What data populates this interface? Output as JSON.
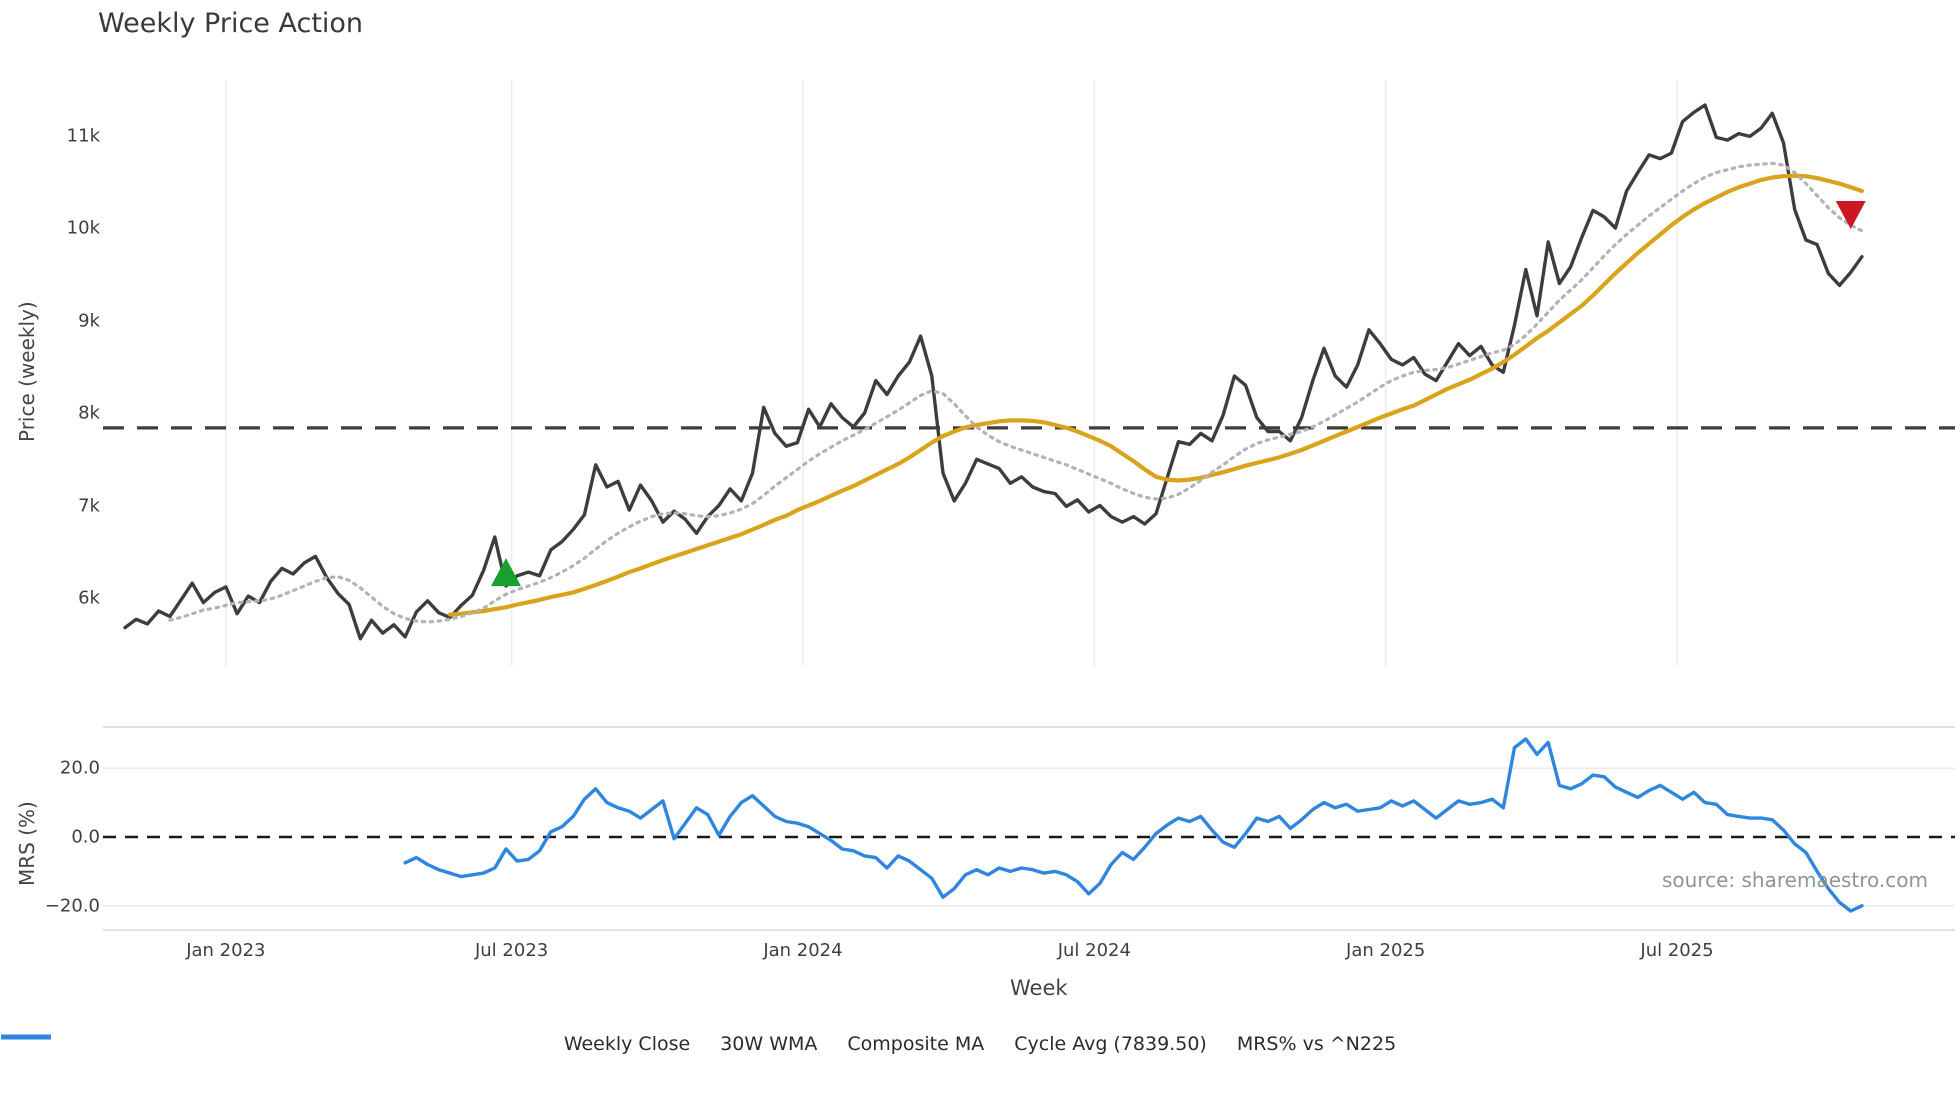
{
  "title": "Weekly Price Action",
  "source_note": "source: sharemaestro.com",
  "colors": {
    "close": "#3d3d3d",
    "wma": "#d9a41b",
    "composite": "#b3b3b3",
    "cycle_avg": "#3d3d3d",
    "mrs": "#2e86de",
    "buy_marker": "#17a02b",
    "sell_marker": "#cf1722",
    "gridline": "#ececf2",
    "panel_border": "#d9d9de",
    "panel_gridline": "#ebebef",
    "zero_line": "#1a1a1a"
  },
  "legend": [
    {
      "label": "Weekly Close",
      "swatch": "solid",
      "color": "#3d3d3d"
    },
    {
      "label": "30W WMA",
      "swatch": "solid",
      "color": "#d9a41b"
    },
    {
      "label": "Composite MA",
      "swatch": "dotted",
      "color": "#b3b3b3"
    },
    {
      "label": "Cycle Avg (7839.50)",
      "swatch": "dashed",
      "color": "#3d3d3d"
    },
    {
      "label": "MRS% vs ^N225",
      "swatch": "solid",
      "color": "#2e86de"
    }
  ],
  "chart_data": [
    {
      "type": "line",
      "title": "Weekly Price Action",
      "xlabel": "Week",
      "ylabel": "Price (weekly)",
      "ylim": [
        5400,
        11600
      ],
      "yticks": [
        {
          "v": 6000,
          "label": "6k"
        },
        {
          "v": 7000,
          "label": "7k"
        },
        {
          "v": 8000,
          "label": "8k"
        },
        {
          "v": 9000,
          "label": "9k"
        },
        {
          "v": 10000,
          "label": "10k"
        },
        {
          "v": 11000,
          "label": "11k"
        }
      ],
      "xticks": [
        {
          "week": 9,
          "label": "Jan 2023"
        },
        {
          "week": 34.5,
          "label": "Jul 2023"
        },
        {
          "week": 60.5,
          "label": "Jan 2024"
        },
        {
          "week": 86.5,
          "label": "Jul 2024"
        },
        {
          "week": 112.5,
          "label": "Jan 2025"
        },
        {
          "week": 138.5,
          "label": "Jul 2025"
        }
      ],
      "grid": "vertical",
      "cycle_avg": 7839.5,
      "series": [
        {
          "name": "Weekly Close",
          "style": "solid",
          "color": "#3d3d3d",
          "width": 3.4,
          "start_week": 0,
          "values": [
            5680,
            5770,
            5720,
            5860,
            5800,
            5980,
            6160,
            5950,
            6060,
            6120,
            5830,
            6020,
            5950,
            6180,
            6320,
            6260,
            6380,
            6450,
            6220,
            6050,
            5930,
            5560,
            5760,
            5620,
            5710,
            5580,
            5850,
            5970,
            5840,
            5790,
            5920,
            6030,
            6300,
            6660,
            6130,
            6240,
            6280,
            6240,
            6520,
            6610,
            6740,
            6900,
            7440,
            7200,
            7260,
            6950,
            7220,
            7050,
            6820,
            6940,
            6850,
            6700,
            6880,
            7000,
            7180,
            7050,
            7350,
            8060,
            7780,
            7640,
            7680,
            8040,
            7850,
            8100,
            7950,
            7850,
            8000,
            8350,
            8200,
            8400,
            8550,
            8830,
            8400,
            7350,
            7050,
            7240,
            7500,
            7450,
            7400,
            7240,
            7310,
            7200,
            7150,
            7130,
            6990,
            7060,
            6930,
            7000,
            6880,
            6820,
            6880,
            6800,
            6910,
            7300,
            7690,
            7660,
            7780,
            7700,
            7980,
            8400,
            8300,
            7950,
            7800,
            7800,
            7700,
            7950,
            8350,
            8700,
            8400,
            8280,
            8520,
            8900,
            8750,
            8580,
            8520,
            8600,
            8420,
            8350,
            8550,
            8750,
            8620,
            8720,
            8520,
            8440,
            8950,
            9550,
            9050,
            9850,
            9400,
            9580,
            9900,
            10190,
            10120,
            10000,
            10400,
            10600,
            10790,
            10750,
            10810,
            11150,
            11250,
            11330,
            10980,
            10950,
            11020,
            10990,
            11080,
            11240,
            10920,
            10200,
            9870,
            9820,
            9510,
            9380,
            9520,
            9690
          ]
        },
        {
          "name": "30W WMA",
          "style": "solid",
          "color": "#d9a41b",
          "width": 4.2,
          "start_week": 29,
          "values": [
            5820,
            5830,
            5845,
            5860,
            5880,
            5900,
            5930,
            5955,
            5980,
            6010,
            6035,
            6060,
            6100,
            6140,
            6185,
            6230,
            6280,
            6320,
            6365,
            6410,
            6450,
            6490,
            6530,
            6570,
            6610,
            6650,
            6690,
            6740,
            6790,
            6845,
            6890,
            6950,
            7000,
            7050,
            7105,
            7160,
            7210,
            7270,
            7330,
            7390,
            7450,
            7520,
            7600,
            7680,
            7750,
            7800,
            7845,
            7870,
            7890,
            7910,
            7920,
            7920,
            7915,
            7900,
            7870,
            7840,
            7800,
            7750,
            7700,
            7640,
            7560,
            7480,
            7390,
            7310,
            7280,
            7270,
            7280,
            7300,
            7330,
            7360,
            7395,
            7430,
            7460,
            7490,
            7520,
            7560,
            7600,
            7650,
            7700,
            7750,
            7800,
            7850,
            7900,
            7950,
            7995,
            8040,
            8080,
            8140,
            8200,
            8260,
            8310,
            8360,
            8420,
            8480,
            8550,
            8630,
            8720,
            8810,
            8890,
            8980,
            9070,
            9160,
            9270,
            9390,
            9510,
            9620,
            9730,
            9830,
            9930,
            10030,
            10120,
            10200,
            10270,
            10330,
            10390,
            10440,
            10480,
            10520,
            10545,
            10560,
            10565,
            10560,
            10540,
            10510,
            10480,
            10440,
            10400
          ]
        },
        {
          "name": "Composite MA",
          "style": "dotted",
          "color": "#b3b3b3",
          "width": 3.2,
          "start_week": 4,
          "values": [
            5760,
            5790,
            5830,
            5870,
            5890,
            5920,
            5950,
            5960,
            5970,
            5990,
            6030,
            6080,
            6130,
            6180,
            6220,
            6230,
            6190,
            6110,
            6010,
            5910,
            5830,
            5780,
            5750,
            5740,
            5750,
            5770,
            5800,
            5840,
            5890,
            5970,
            6040,
            6090,
            6130,
            6170,
            6220,
            6280,
            6350,
            6430,
            6530,
            6620,
            6700,
            6770,
            6830,
            6880,
            6910,
            6920,
            6910,
            6890,
            6880,
            6890,
            6920,
            6960,
            7020,
            7110,
            7210,
            7300,
            7390,
            7480,
            7560,
            7630,
            7700,
            7760,
            7820,
            7890,
            7960,
            8030,
            8110,
            8190,
            8240,
            8210,
            8100,
            7970,
            7850,
            7760,
            7690,
            7640,
            7600,
            7560,
            7520,
            7480,
            7440,
            7390,
            7340,
            7290,
            7240,
            7180,
            7130,
            7090,
            7070,
            7080,
            7120,
            7190,
            7270,
            7360,
            7440,
            7530,
            7610,
            7670,
            7710,
            7740,
            7770,
            7800,
            7850,
            7910,
            7980,
            8050,
            8120,
            8200,
            8280,
            8350,
            8400,
            8440,
            8460,
            8470,
            8490,
            8530,
            8570,
            8610,
            8650,
            8680,
            8740,
            8840,
            8960,
            9090,
            9220,
            9330,
            9440,
            9570,
            9700,
            9820,
            9930,
            10030,
            10130,
            10220,
            10310,
            10400,
            10480,
            10550,
            10600,
            10630,
            10660,
            10680,
            10690,
            10700,
            10680,
            10600,
            10480,
            10350,
            10220,
            10110,
            10030,
            9970
          ]
        },
        {
          "name": "Cycle Avg (7839.50)",
          "style": "dashed",
          "color": "#3d3d3d",
          "width": 3.2,
          "constant": 7839.5
        }
      ],
      "markers": [
        {
          "shape": "triangle-up",
          "week": 34,
          "value": 6280,
          "color": "#17a02b",
          "meaning": "buy-signal"
        },
        {
          "shape": "triangle-down",
          "week": 154,
          "value": 10140,
          "color": "#cf1722",
          "meaning": "sell-signal"
        }
      ]
    },
    {
      "type": "line",
      "ylabel": "MRS (%)",
      "ylim": [
        -26.5,
        32
      ],
      "yticks": [
        {
          "v": 20,
          "label": "20.0"
        },
        {
          "v": 0,
          "label": "0.0"
        },
        {
          "v": -20,
          "label": "−20.0"
        }
      ],
      "zero_line": true,
      "series": [
        {
          "name": "MRS% vs ^N225",
          "style": "solid",
          "color": "#2e86de",
          "width": 3.4,
          "start_week": 25,
          "values": [
            -7.5,
            -6,
            -8,
            -9.5,
            -10.5,
            -11.5,
            -11,
            -10.5,
            -9,
            -3.5,
            -7,
            -6.5,
            -4,
            1.5,
            3,
            6,
            11,
            14,
            10,
            8.5,
            7.5,
            5.5,
            8,
            10.5,
            -0.5,
            4,
            8.5,
            6.5,
            0.5,
            6,
            10,
            12,
            9,
            6,
            4.5,
            4,
            3,
            1,
            -1,
            -3.5,
            -4,
            -5.5,
            -6,
            -9,
            -5.5,
            -7,
            -9.5,
            -12,
            -17.5,
            -15,
            -11,
            -9.5,
            -11,
            -9,
            -10,
            -9,
            -9.5,
            -10.5,
            -10,
            -11,
            -13,
            -16.5,
            -13.5,
            -8,
            -4.5,
            -6.5,
            -3,
            1,
            3.5,
            5.5,
            4.5,
            6,
            2,
            -1.5,
            -3,
            1,
            5.5,
            4.5,
            6,
            2.5,
            5,
            8,
            10,
            8.5,
            9.5,
            7.5,
            8,
            8.5,
            10.5,
            9,
            10.5,
            8,
            5.5,
            8,
            10.5,
            9.5,
            10,
            11,
            8.5,
            26,
            28.5,
            24,
            27.5,
            15,
            14,
            15.5,
            18,
            17.5,
            14.5,
            13,
            11.5,
            13.5,
            15,
            13,
            11,
            13,
            10,
            9.5,
            6.5,
            6,
            5.5,
            5.5,
            5,
            2,
            -2,
            -4.5,
            -10,
            -15,
            -19,
            -21.5,
            -20
          ]
        }
      ]
    }
  ]
}
